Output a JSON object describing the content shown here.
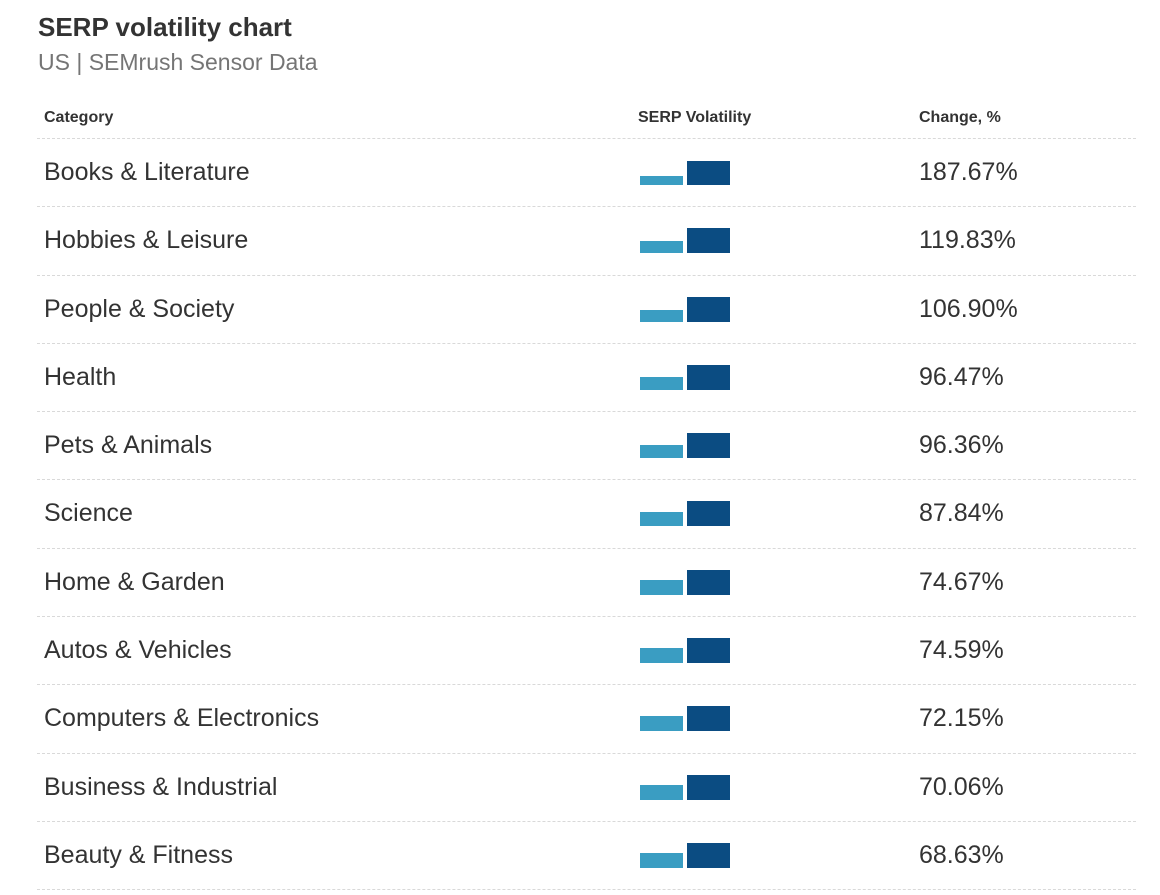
{
  "header": {
    "title": "SERP volatility chart",
    "subtitle": "US | SEMrush Sensor Data"
  },
  "columns": {
    "category": "Category",
    "volatility": "SERP Volatility",
    "change": "Change, %"
  },
  "colors": {
    "previous_bar": "#3a9dc2",
    "current_bar": "#0b4c82",
    "divider": "#d9d9d9",
    "title": "#333333",
    "subtitle": "#757575"
  },
  "chart_data": {
    "type": "table",
    "title": "SERP volatility chart",
    "subtitle": "US | SEMrush Sensor Data",
    "columns": [
      "Category",
      "SERP Volatility",
      "Change, %"
    ],
    "rows": [
      {
        "category": "Books & Literature",
        "change": "187.67%",
        "change_value": 187.67,
        "spark": [
          0.33,
          0.93
        ]
      },
      {
        "category": "Hobbies & Leisure",
        "change": "119.83%",
        "change_value": 119.83,
        "spark": [
          0.45,
          0.96
        ]
      },
      {
        "category": "People & Society",
        "change": "106.90%",
        "change_value": 106.9,
        "spark": [
          0.48,
          0.96
        ]
      },
      {
        "category": "Health",
        "change": "96.47%",
        "change_value": 96.47,
        "spark": [
          0.5,
          0.96
        ]
      },
      {
        "category": "Pets & Animals",
        "change": "96.36%",
        "change_value": 96.36,
        "spark": [
          0.5,
          0.96
        ]
      },
      {
        "category": "Science",
        "change": "87.84%",
        "change_value": 87.84,
        "spark": [
          0.52,
          0.96
        ]
      },
      {
        "category": "Home & Garden",
        "change": "74.67%",
        "change_value": 74.67,
        "spark": [
          0.56,
          0.96
        ]
      },
      {
        "category": "Autos & Vehicles",
        "change": "74.59%",
        "change_value": 74.59,
        "spark": [
          0.56,
          0.96
        ]
      },
      {
        "category": "Computers & Electronics",
        "change": "72.15%",
        "change_value": 72.15,
        "spark": [
          0.57,
          0.96
        ]
      },
      {
        "category": "Business & Industrial",
        "change": "70.06%",
        "change_value": 70.06,
        "spark": [
          0.57,
          0.96
        ]
      },
      {
        "category": "Beauty & Fitness",
        "change": "68.63%",
        "change_value": 68.63,
        "spark": [
          0.58,
          0.96
        ]
      }
    ]
  }
}
